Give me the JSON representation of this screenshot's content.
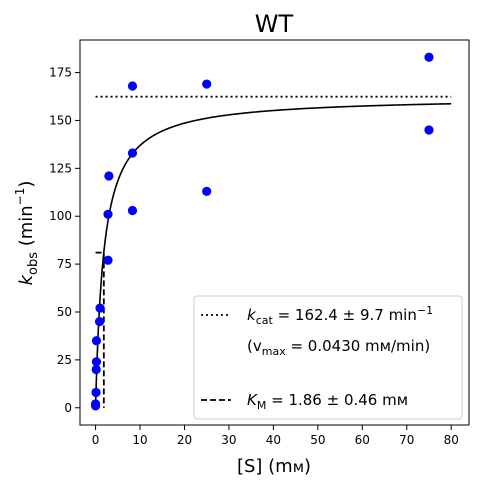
{
  "chart_data": {
    "type": "scatter",
    "title": "WT",
    "xlabel_main": "[S] (m",
    "xlabel_unit": "м",
    "xlabel_close": ")",
    "ylabel_k": "k",
    "ylabel_sub": "obs",
    "ylabel_unit": "(min",
    "ylabel_sup": "−1",
    "ylabel_close": ")",
    "xlim": [
      -3.5,
      84
    ],
    "ylim": [
      -9,
      192
    ],
    "xticks": [
      0,
      10,
      20,
      30,
      40,
      50,
      60,
      70,
      80
    ],
    "yticks": [
      0,
      25,
      50,
      75,
      100,
      125,
      150,
      175
    ],
    "grid": false,
    "legend_position": "lower right",
    "points": [
      {
        "x": 0,
        "y": 1
      },
      {
        "x": 0,
        "y": 2
      },
      {
        "x": 0.1,
        "y": 8
      },
      {
        "x": 0.15,
        "y": 20
      },
      {
        "x": 0.2,
        "y": 24
      },
      {
        "x": 0.2,
        "y": 35
      },
      {
        "x": 0.9,
        "y": 45
      },
      {
        "x": 1.0,
        "y": 52
      },
      {
        "x": 2.8,
        "y": 77
      },
      {
        "x": 2.8,
        "y": 101
      },
      {
        "x": 3.0,
        "y": 121
      },
      {
        "x": 8.3,
        "y": 103
      },
      {
        "x": 8.3,
        "y": 133
      },
      {
        "x": 8.3,
        "y": 168
      },
      {
        "x": 25,
        "y": 113
      },
      {
        "x": 25,
        "y": 169
      },
      {
        "x": 75,
        "y": 145
      },
      {
        "x": 75,
        "y": 183
      }
    ],
    "kcat": 162.4,
    "km": 1.86,
    "fit_x_range": [
      0,
      80
    ],
    "hline_x_range": [
      0,
      80
    ],
    "km_marker_y": 81,
    "colors": {
      "points": "#0000ff",
      "lines": "#000000"
    },
    "legend": {
      "kcat_prefix": "k",
      "kcat_sub": "cat",
      "kcat_text": " = 162.4 ± 9.7 min",
      "kcat_sup": "−1",
      "vmax_open": "(v",
      "vmax_sub": "max",
      "vmax_text": " = 0.0430 mм/min)",
      "km_prefix": "K",
      "km_sub": "M",
      "km_text": " = 1.86 ± 0.46 mм"
    }
  }
}
